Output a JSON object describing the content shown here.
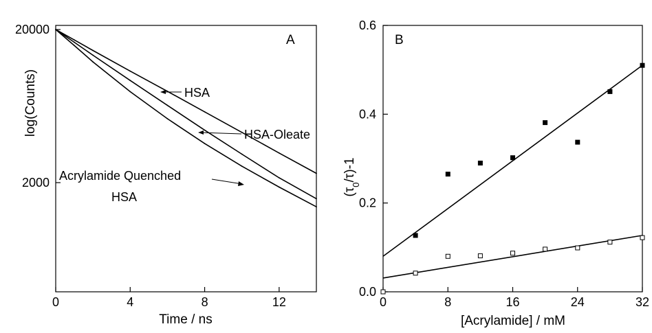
{
  "chart_data": [
    {
      "panel_label": "A",
      "type": "line",
      "xlabel": "Time / ns",
      "ylabel": "log(Counts)",
      "xlim": [
        0,
        14
      ],
      "ylim": [
        200,
        20000
      ],
      "yscale": "log",
      "xticks": [
        0,
        4,
        8,
        12
      ],
      "yticks": [
        2000,
        20000
      ],
      "series": [
        {
          "name": "HSA",
          "x": [
            0,
            1,
            2,
            4,
            6,
            8,
            10,
            12,
            14
          ],
          "y": [
            20000,
            17100,
            14600,
            10700,
            7900,
            5800,
            4260,
            3120,
            2300
          ]
        },
        {
          "name": "HSA-Oleate",
          "x": [
            0,
            1,
            2,
            4,
            6,
            8,
            10,
            12,
            14
          ],
          "y": [
            20000,
            16500,
            13600,
            9300,
            6400,
            4400,
            3070,
            2150,
            1570
          ]
        },
        {
          "name": "Acrylamide Quenched HSA",
          "x": [
            0,
            1,
            2,
            4,
            6,
            8,
            10,
            12,
            14
          ],
          "y": [
            20000,
            15700,
            12300,
            7860,
            5230,
            3600,
            2560,
            1870,
            1390
          ]
        }
      ],
      "annotations": [
        "HSA",
        "HSA-Oleate",
        "Acrylamide Quenched",
        "HSA"
      ]
    },
    {
      "panel_label": "B",
      "type": "scatter",
      "xlabel": "[Acrylamide] / mM",
      "ylabel": "(τ0/τ)-1",
      "xlim": [
        0,
        32
      ],
      "ylim": [
        0,
        0.6
      ],
      "xticks": [
        0,
        8,
        16,
        24,
        32
      ],
      "yticks": [
        "0.0",
        "0.2",
        "0.4",
        "0.6"
      ],
      "series": [
        {
          "marker": "filled-square",
          "x": [
            4,
            8,
            12,
            16,
            20,
            24,
            28,
            32
          ],
          "y": [
            0.127,
            0.265,
            0.29,
            0.302,
            0.381,
            0.337,
            0.451,
            0.51
          ],
          "fit": {
            "intercept": 0.08,
            "slope": 0.01344
          }
        },
        {
          "marker": "open-square",
          "x": [
            0,
            4,
            8,
            12,
            16,
            20,
            24,
            28,
            32
          ],
          "y": [
            0.0,
            0.042,
            0.08,
            0.081,
            0.087,
            0.096,
            0.099,
            0.112,
            0.122
          ],
          "fit": {
            "intercept": 0.031,
            "slope": 0.003
          }
        }
      ]
    }
  ]
}
